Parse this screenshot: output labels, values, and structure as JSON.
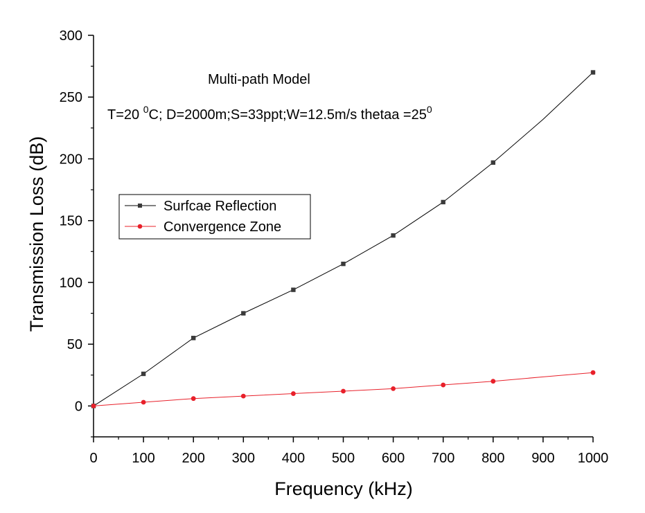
{
  "chart_data": {
    "type": "line",
    "xlabel": "Frequency (kHz)",
    "ylabel": "Transmission Loss (dB)",
    "xlim": [
      0,
      1000
    ],
    "ylim": [
      -25,
      300
    ],
    "x_ticks": [
      0,
      100,
      200,
      300,
      400,
      500,
      600,
      700,
      800,
      900,
      1000
    ],
    "y_ticks": [
      0,
      50,
      100,
      150,
      200,
      250,
      300
    ],
    "x_tick_labels": [
      "0",
      "100",
      "200",
      "300",
      "400",
      "500",
      "600",
      "700",
      "800",
      "900",
      "1000"
    ],
    "y_tick_labels": [
      "0",
      "50",
      "100",
      "150",
      "200",
      "250",
      "300"
    ],
    "grid": false,
    "legend_position": "middle-left",
    "annotations": {
      "line1": "Multi-path Model",
      "line2_prefix": "T=20 ",
      "line2_sup1": "0",
      "line2_mid": "C; D=2000m;S=33ppt;W=12.5m/s thetaa =25",
      "line2_sup2": "0"
    },
    "x": [
      0,
      100,
      200,
      300,
      400,
      500,
      600,
      700,
      800,
      900,
      1000
    ],
    "series": [
      {
        "name": "Surfcae Reflection",
        "color": "#000000",
        "marker_color": "#3a3a3a",
        "marker": "square",
        "values": [
          0,
          26,
          55,
          75,
          94,
          115,
          138,
          165,
          197,
          232,
          270
        ],
        "marker_at": [
          true,
          true,
          true,
          true,
          true,
          true,
          true,
          true,
          true,
          false,
          true
        ]
      },
      {
        "name": "Convergence Zone",
        "color": "#e8202a",
        "marker_color": "#e8202a",
        "marker": "circle",
        "values": [
          0,
          3,
          6,
          8,
          10,
          12,
          14,
          17,
          20,
          23.5,
          27
        ],
        "marker_at": [
          true,
          true,
          true,
          true,
          true,
          true,
          true,
          true,
          true,
          false,
          true
        ]
      }
    ]
  }
}
